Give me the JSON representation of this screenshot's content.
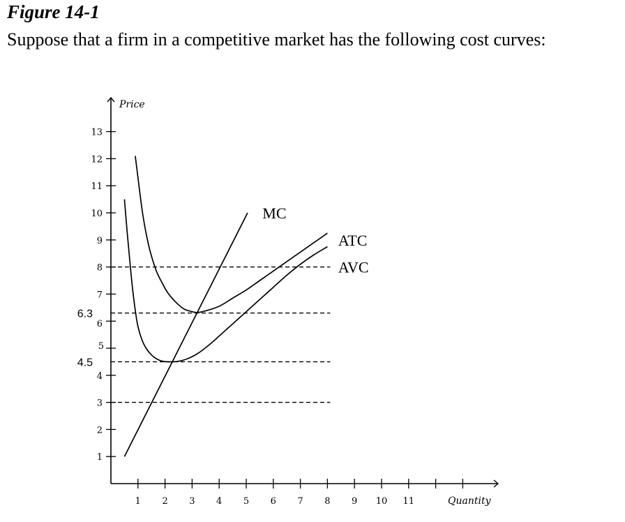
{
  "figure": {
    "title": "Figure 14-1",
    "description": "Suppose that a firm in a competitive market has the following cost curves:"
  },
  "chart_data": {
    "type": "line",
    "ylabel": "Price",
    "xlabel": "Quantity",
    "xlim": [
      0,
      13.5
    ],
    "ylim": [
      0,
      13.5
    ],
    "x_ticks": [
      1,
      2,
      3,
      4,
      5,
      6,
      7,
      8,
      9,
      10,
      11,
      12,
      13
    ],
    "x_tick_labels": [
      "1",
      "2",
      "3",
      "4",
      "5",
      "6",
      "7",
      "8",
      "9",
      "10",
      "11",
      "",
      ""
    ],
    "y_ticks": [
      1,
      2,
      3,
      4,
      5,
      6,
      7,
      8,
      9,
      10,
      11,
      12,
      13
    ],
    "y_tick_labels": [
      "1",
      "2",
      "3",
      "4",
      "5",
      "6",
      "7",
      "8",
      "9",
      "10",
      "11",
      "12",
      "13"
    ],
    "special_y_labels": [
      {
        "value": 6.3,
        "label": "6.3"
      },
      {
        "value": 4.5,
        "label": "4.5"
      }
    ],
    "reference_lines": [
      {
        "y": 8,
        "x_start": 0,
        "x_end": 8,
        "style": "dashed"
      },
      {
        "y": 6.3,
        "x_start": 0,
        "x_end": 8,
        "style": "dashed"
      },
      {
        "y": 4.5,
        "x_start": 0,
        "x_end": 8,
        "style": "dashed"
      },
      {
        "y": 3,
        "x_start": 0,
        "x_end": 8,
        "style": "dashed"
      }
    ],
    "series": [
      {
        "name": "MC",
        "x": [
          0.5,
          5.05
        ],
        "y": [
          1.0,
          10.0
        ]
      },
      {
        "name": "ATC",
        "x": [
          0.9,
          1.0,
          1.1,
          1.2,
          1.35,
          1.5,
          1.7,
          1.9,
          2.1,
          2.4,
          2.7,
          3.0,
          3.2,
          3.5,
          4.0,
          4.5,
          5.0,
          5.5,
          6.0,
          6.5,
          7.0,
          7.5,
          8.0
        ],
        "y": [
          12.1,
          11.3,
          10.5,
          9.8,
          9.0,
          8.4,
          7.8,
          7.4,
          7.05,
          6.7,
          6.45,
          6.35,
          6.32,
          6.38,
          6.55,
          6.85,
          7.15,
          7.5,
          7.85,
          8.2,
          8.55,
          8.9,
          9.25
        ]
      },
      {
        "name": "AVC",
        "x": [
          0.5,
          0.6,
          0.7,
          0.8,
          0.9,
          1.0,
          1.15,
          1.3,
          1.5,
          1.7,
          1.9,
          2.1,
          2.3,
          2.5,
          2.8,
          3.2,
          3.6,
          4.0,
          4.5,
          5.0,
          5.5,
          6.0,
          6.5,
          7.0,
          7.5,
          8.0
        ],
        "y": [
          10.5,
          9.3,
          8.2,
          7.2,
          6.4,
          5.8,
          5.3,
          5.0,
          4.75,
          4.6,
          4.52,
          4.5,
          4.5,
          4.52,
          4.6,
          4.8,
          5.1,
          5.45,
          5.9,
          6.35,
          6.8,
          7.25,
          7.7,
          8.1,
          8.45,
          8.75
        ]
      }
    ],
    "curve_labels": [
      {
        "series": "MC",
        "label": "MC",
        "x": 5.6,
        "y": 10.0
      },
      {
        "series": "ATC",
        "label": "ATC",
        "x": 8.4,
        "y": 9.0
      },
      {
        "series": "AVC",
        "label": "AVC",
        "x": 8.4,
        "y": 8.0
      }
    ]
  }
}
